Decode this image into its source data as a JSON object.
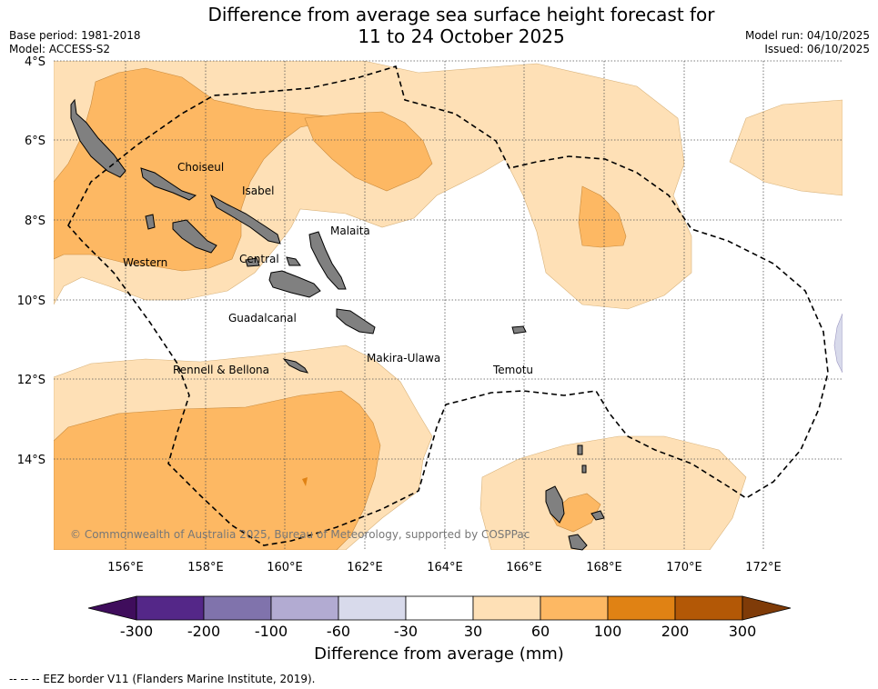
{
  "title_line1": "Difference from average sea surface height forecast for",
  "title_line2": "11 to 24 October 2025",
  "base_period": "Base period: 1981-2018",
  "model": "Model: ACCESS-S2",
  "model_run": "Model run: 04/10/2025",
  "issued": "Issued: 06/10/2025",
  "lat_labels": [
    "4°S",
    "6°S",
    "8°S",
    "10°S",
    "12°S",
    "14°S"
  ],
  "lon_labels": [
    "156°E",
    "158°E",
    "160°E",
    "162°E",
    "164°E",
    "166°E",
    "168°E",
    "170°E",
    "172°E"
  ],
  "places": {
    "choiseul": "Choiseul",
    "isabel": "Isabel",
    "malaita": "Malaita",
    "western": "Western",
    "central": "Central",
    "guadalcanal": "Guadalcanal",
    "makira": "Makira-Ulawa",
    "temotu": "Temotu",
    "rennell": "Rennell & Bellona"
  },
  "copyright": "© Commonwealth of Australia 2025, Bureau of Meteorology, supported by COSPPac",
  "colorbar": {
    "ticks": [
      "-300",
      "-200",
      "-100",
      "-60",
      "-30",
      "30",
      "60",
      "100",
      "200",
      "300"
    ],
    "colors": [
      "#3f0d5c",
      "#542788",
      "#8073ac",
      "#b2abd2",
      "#d8daeb",
      "#ffffff",
      "#fee0b6",
      "#fdb863",
      "#e08214",
      "#b35806",
      "#7f3b08"
    ],
    "title": "Difference from average (mm)"
  },
  "eez_note": "--  --  -- EEZ border V11 (Flanders Marine Institute, 2019)."
}
